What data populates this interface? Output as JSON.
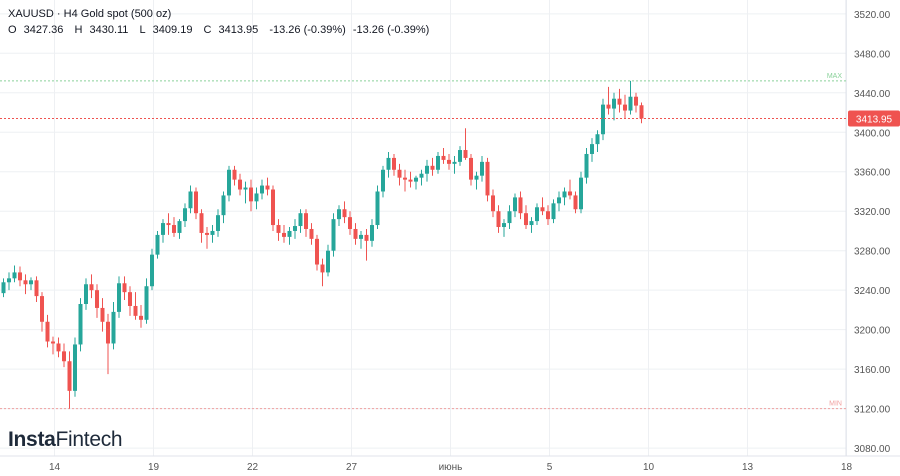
{
  "header": {
    "symbol": "XAUUSD",
    "timeframe": "H4",
    "instrument": "Gold spot (500 oz)",
    "ohlc": {
      "o_label": "O",
      "o": "3427.36",
      "h_label": "H",
      "h": "3430.11",
      "l_label": "L",
      "l": "3409.19",
      "c_label": "C",
      "c": "3413.95",
      "change": "-13.26 (-0.39%)",
      "change2": "-13.26 (-0.39%)"
    }
  },
  "brand": {
    "part1": "Insta",
    "part2": "Fintech"
  },
  "colors": {
    "up": "#26a69a",
    "down": "#ef5350",
    "max_line": "#8ad19a",
    "min_line": "#f0a0a0",
    "last_price_line": "#ef5350",
    "last_price_badge": "#ef5350",
    "grid": "#eef0f3",
    "axis_text": "#555555"
  },
  "chart_data": {
    "type": "candlestick",
    "x_labels": [
      {
        "i": 3,
        "text": "14"
      },
      {
        "i": 21,
        "text": "19"
      },
      {
        "i": 39,
        "text": "22"
      },
      {
        "i": 57,
        "text": "27"
      },
      {
        "i": 75,
        "text": "июнь"
      },
      {
        "i": 93,
        "text": "5"
      },
      {
        "i": 111,
        "text": "10"
      },
      {
        "i": 129,
        "text": "13"
      },
      {
        "i": 147,
        "text": "18"
      }
    ],
    "y_ticks": [
      3080,
      3120,
      3160,
      3200,
      3240,
      3280,
      3320,
      3360,
      3400,
      3440,
      3480,
      3520
    ],
    "ylim": [
      3072,
      3534
    ],
    "max_line": {
      "value": 3452,
      "label": "MAX"
    },
    "min_line": {
      "value": 3120,
      "label": "MIN"
    },
    "last_price": {
      "value": 3413.95,
      "label": "3413.95"
    },
    "candles": [
      [
        3237,
        3252,
        3233,
        3248
      ],
      [
        3248,
        3258,
        3240,
        3252
      ],
      [
        3252,
        3265,
        3248,
        3258
      ],
      [
        3258,
        3264,
        3244,
        3250
      ],
      [
        3250,
        3256,
        3236,
        3246
      ],
      [
        3246,
        3253,
        3240,
        3250
      ],
      [
        3250,
        3254,
        3228,
        3234
      ],
      [
        3234,
        3238,
        3198,
        3208
      ],
      [
        3208,
        3215,
        3182,
        3188
      ],
      [
        3188,
        3193,
        3175,
        3186
      ],
      [
        3186,
        3192,
        3172,
        3178
      ],
      [
        3178,
        3186,
        3162,
        3168
      ],
      [
        3168,
        3178,
        3120,
        3138
      ],
      [
        3138,
        3192,
        3132,
        3185
      ],
      [
        3185,
        3232,
        3178,
        3226
      ],
      [
        3226,
        3252,
        3220,
        3246
      ],
      [
        3246,
        3256,
        3232,
        3240
      ],
      [
        3240,
        3246,
        3212,
        3222
      ],
      [
        3222,
        3232,
        3198,
        3208
      ],
      [
        3208,
        3216,
        3155,
        3186
      ],
      [
        3186,
        3228,
        3180,
        3218
      ],
      [
        3218,
        3254,
        3212,
        3247
      ],
      [
        3247,
        3254,
        3230,
        3238
      ],
      [
        3238,
        3244,
        3214,
        3224
      ],
      [
        3224,
        3238,
        3210,
        3214
      ],
      [
        3214,
        3225,
        3202,
        3210
      ],
      [
        3210,
        3252,
        3206,
        3244
      ],
      [
        3244,
        3282,
        3240,
        3276
      ],
      [
        3276,
        3300,
        3272,
        3296
      ],
      [
        3296,
        3312,
        3288,
        3308
      ],
      [
        3308,
        3318,
        3296,
        3306
      ],
      [
        3306,
        3314,
        3294,
        3298
      ],
      [
        3298,
        3312,
        3292,
        3310
      ],
      [
        3310,
        3328,
        3304,
        3323
      ],
      [
        3323,
        3346,
        3318,
        3340
      ],
      [
        3340,
        3344,
        3312,
        3318
      ],
      [
        3318,
        3322,
        3288,
        3298
      ],
      [
        3298,
        3304,
        3282,
        3296
      ],
      [
        3296,
        3306,
        3288,
        3300
      ],
      [
        3300,
        3322,
        3294,
        3316
      ],
      [
        3316,
        3340,
        3308,
        3336
      ],
      [
        3336,
        3366,
        3330,
        3362
      ],
      [
        3362,
        3366,
        3346,
        3352
      ],
      [
        3352,
        3358,
        3336,
        3342
      ],
      [
        3342,
        3350,
        3328,
        3344
      ],
      [
        3344,
        3352,
        3320,
        3330
      ],
      [
        3330,
        3344,
        3322,
        3338
      ],
      [
        3338,
        3352,
        3332,
        3346
      ],
      [
        3346,
        3354,
        3336,
        3342
      ],
      [
        3342,
        3346,
        3300,
        3306
      ],
      [
        3306,
        3312,
        3290,
        3298
      ],
      [
        3298,
        3306,
        3288,
        3294
      ],
      [
        3294,
        3304,
        3286,
        3300
      ],
      [
        3300,
        3312,
        3292,
        3305
      ],
      [
        3305,
        3322,
        3298,
        3318
      ],
      [
        3318,
        3322,
        3294,
        3302
      ],
      [
        3302,
        3308,
        3286,
        3292
      ],
      [
        3292,
        3296,
        3260,
        3266
      ],
      [
        3266,
        3272,
        3244,
        3258
      ],
      [
        3258,
        3286,
        3254,
        3280
      ],
      [
        3280,
        3318,
        3274,
        3312
      ],
      [
        3312,
        3326,
        3305,
        3322
      ],
      [
        3322,
        3330,
        3308,
        3314
      ],
      [
        3314,
        3320,
        3296,
        3302
      ],
      [
        3302,
        3308,
        3286,
        3292
      ],
      [
        3292,
        3300,
        3282,
        3296
      ],
      [
        3296,
        3302,
        3270,
        3290
      ],
      [
        3290,
        3312,
        3284,
        3306
      ],
      [
        3306,
        3346,
        3302,
        3340
      ],
      [
        3340,
        3366,
        3334,
        3362
      ],
      [
        3362,
        3380,
        3354,
        3374
      ],
      [
        3374,
        3378,
        3356,
        3362
      ],
      [
        3362,
        3368,
        3346,
        3354
      ],
      [
        3354,
        3362,
        3340,
        3352
      ],
      [
        3352,
        3360,
        3344,
        3350
      ],
      [
        3350,
        3356,
        3342,
        3354
      ],
      [
        3354,
        3362,
        3346,
        3358
      ],
      [
        3358,
        3372,
        3350,
        3366
      ],
      [
        3366,
        3374,
        3356,
        3362
      ],
      [
        3362,
        3380,
        3358,
        3376
      ],
      [
        3376,
        3384,
        3368,
        3372
      ],
      [
        3372,
        3378,
        3362,
        3368
      ],
      [
        3368,
        3376,
        3358,
        3370
      ],
      [
        3370,
        3386,
        3366,
        3382
      ],
      [
        3382,
        3404,
        3372,
        3374
      ],
      [
        3374,
        3378,
        3346,
        3352
      ],
      [
        3352,
        3360,
        3342,
        3356
      ],
      [
        3356,
        3376,
        3350,
        3370
      ],
      [
        3370,
        3374,
        3330,
        3336
      ],
      [
        3336,
        3342,
        3314,
        3320
      ],
      [
        3320,
        3326,
        3298,
        3304
      ],
      [
        3304,
        3312,
        3294,
        3308
      ],
      [
        3308,
        3326,
        3302,
        3320
      ],
      [
        3320,
        3338,
        3314,
        3334
      ],
      [
        3334,
        3340,
        3312,
        3318
      ],
      [
        3318,
        3326,
        3302,
        3306
      ],
      [
        3306,
        3314,
        3298,
        3310
      ],
      [
        3310,
        3328,
        3306,
        3324
      ],
      [
        3324,
        3334,
        3316,
        3320
      ],
      [
        3320,
        3326,
        3306,
        3312
      ],
      [
        3312,
        3332,
        3308,
        3328
      ],
      [
        3328,
        3340,
        3320,
        3334
      ],
      [
        3334,
        3344,
        3326,
        3340
      ],
      [
        3340,
        3352,
        3332,
        3336
      ],
      [
        3336,
        3340,
        3318,
        3322
      ],
      [
        3322,
        3360,
        3318,
        3354
      ],
      [
        3354,
        3384,
        3348,
        3378
      ],
      [
        3378,
        3394,
        3370,
        3388
      ],
      [
        3388,
        3402,
        3380,
        3398
      ],
      [
        3398,
        3434,
        3392,
        3428
      ],
      [
        3428,
        3446,
        3418,
        3424
      ],
      [
        3424,
        3440,
        3412,
        3434
      ],
      [
        3434,
        3444,
        3420,
        3428
      ],
      [
        3428,
        3438,
        3414,
        3422
      ],
      [
        3422,
        3452,
        3418,
        3436
      ],
      [
        3436,
        3440,
        3420,
        3427
      ],
      [
        3427.36,
        3430.11,
        3409.19,
        3413.95
      ]
    ]
  }
}
